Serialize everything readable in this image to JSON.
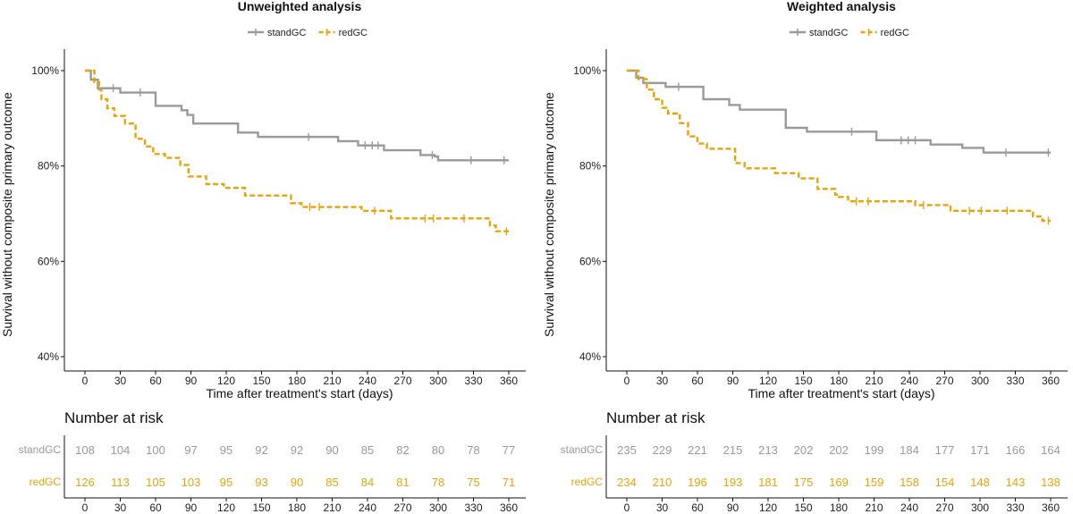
{
  "colors": {
    "standGC": "#9a9a9a",
    "redGC": "#E5A40C",
    "axis": "#111111"
  },
  "chart_data": [
    {
      "type": "line",
      "title": "Unweighted analysis",
      "xlabel": "Time after treatment's start (days)",
      "ylabel": "Survival without composite primary outcome",
      "xlim": [
        0,
        360
      ],
      "ylim": [
        0.4,
        1.0
      ],
      "x_ticks": [
        0,
        30,
        60,
        90,
        120,
        150,
        180,
        210,
        240,
        270,
        300,
        330,
        360
      ],
      "y_ticks": [
        0.4,
        0.6,
        0.8,
        1.0
      ],
      "y_tick_labels": [
        "40%",
        "60%",
        "80%",
        "100%"
      ],
      "legend": [
        "standGC",
        "redGC"
      ],
      "series": [
        {
          "name": "standGC",
          "style": "solid",
          "steps": [
            [
              0,
              1.0
            ],
            [
              5,
              0.981
            ],
            [
              11,
              0.963
            ],
            [
              30,
              0.954
            ],
            [
              60,
              0.926
            ],
            [
              82,
              0.917
            ],
            [
              87,
              0.907
            ],
            [
              92,
              0.889
            ],
            [
              130,
              0.87
            ],
            [
              147,
              0.861
            ],
            [
              215,
              0.852
            ],
            [
              232,
              0.843
            ],
            [
              254,
              0.833
            ],
            [
              285,
              0.823
            ],
            [
              297,
              0.82
            ],
            [
              300,
              0.812
            ],
            [
              360,
              0.812
            ]
          ],
          "censored": [
            [
              24,
              0.963
            ],
            [
              47,
              0.954
            ],
            [
              190,
              0.861
            ],
            [
              238,
              0.843
            ],
            [
              244,
              0.843
            ],
            [
              249,
              0.843
            ],
            [
              295,
              0.823
            ],
            [
              328,
              0.812
            ],
            [
              356,
              0.812
            ]
          ]
        },
        {
          "name": "redGC",
          "style": "dashed",
          "steps": [
            [
              0,
              1.0
            ],
            [
              8,
              0.976
            ],
            [
              12,
              0.96
            ],
            [
              14,
              0.94
            ],
            [
              19,
              0.921
            ],
            [
              25,
              0.905
            ],
            [
              34,
              0.889
            ],
            [
              43,
              0.857
            ],
            [
              51,
              0.841
            ],
            [
              58,
              0.825
            ],
            [
              68,
              0.817
            ],
            [
              81,
              0.802
            ],
            [
              88,
              0.778
            ],
            [
              103,
              0.762
            ],
            [
              118,
              0.754
            ],
            [
              136,
              0.738
            ],
            [
              175,
              0.722
            ],
            [
              184,
              0.714
            ],
            [
              235,
              0.706
            ],
            [
              260,
              0.69
            ],
            [
              344,
              0.675
            ],
            [
              349,
              0.663
            ],
            [
              360,
              0.663
            ]
          ],
          "censored": [
            [
              191,
              0.714
            ],
            [
              199,
              0.714
            ],
            [
              246,
              0.706
            ],
            [
              289,
              0.69
            ],
            [
              296,
              0.69
            ],
            [
              322,
              0.69
            ],
            [
              358,
              0.663
            ]
          ]
        }
      ],
      "risk_table": {
        "title": "Number at risk",
        "times": [
          0,
          30,
          60,
          90,
          120,
          150,
          180,
          210,
          240,
          270,
          300,
          330,
          360
        ],
        "rows": [
          {
            "name": "standGC",
            "values": [
              "108",
              "104",
              "100",
              "97",
              "95",
              "92",
              "92",
              "90",
              "85",
              "82",
              "80",
              "78",
              "77"
            ]
          },
          {
            "name": "redGC",
            "values": [
              "126",
              "113",
              "105",
              "103",
              "95",
              "93",
              "90",
              "85",
              "84",
              "81",
              "78",
              "75",
              "71"
            ]
          }
        ]
      }
    },
    {
      "type": "line",
      "title": "Weighted analysis",
      "xlabel": "Time after treatment's start (days)",
      "ylabel": "Survival without composite primary outcome",
      "xlim": [
        0,
        360
      ],
      "ylim": [
        0.4,
        1.0
      ],
      "x_ticks": [
        0,
        30,
        60,
        90,
        120,
        150,
        180,
        210,
        240,
        270,
        300,
        330,
        360
      ],
      "y_ticks": [
        0.4,
        0.6,
        0.8,
        1.0
      ],
      "y_tick_labels": [
        "40%",
        "60%",
        "80%",
        "100%"
      ],
      "legend": [
        "standGC",
        "redGC"
      ],
      "series": [
        {
          "name": "standGC",
          "style": "solid",
          "steps": [
            [
              0,
              1.0
            ],
            [
              8,
              0.985
            ],
            [
              14,
              0.974
            ],
            [
              33,
              0.966
            ],
            [
              65,
              0.94
            ],
            [
              87,
              0.928
            ],
            [
              96,
              0.918
            ],
            [
              135,
              0.88
            ],
            [
              153,
              0.872
            ],
            [
              212,
              0.854
            ],
            [
              258,
              0.845
            ],
            [
              285,
              0.838
            ],
            [
              303,
              0.828
            ],
            [
              360,
              0.828
            ]
          ],
          "censored": [
            [
              44,
              0.966
            ],
            [
              191,
              0.872
            ],
            [
              233,
              0.854
            ],
            [
              239,
              0.854
            ],
            [
              245,
              0.854
            ],
            [
              322,
              0.828
            ],
            [
              358,
              0.828
            ]
          ]
        },
        {
          "name": "redGC",
          "style": "dashed",
          "steps": [
            [
              0,
              1.0
            ],
            [
              10,
              0.982
            ],
            [
              17,
              0.96
            ],
            [
              23,
              0.94
            ],
            [
              30,
              0.922
            ],
            [
              35,
              0.91
            ],
            [
              45,
              0.89
            ],
            [
              52,
              0.862
            ],
            [
              60,
              0.847
            ],
            [
              68,
              0.836
            ],
            [
              92,
              0.806
            ],
            [
              100,
              0.795
            ],
            [
              126,
              0.785
            ],
            [
              146,
              0.774
            ],
            [
              162,
              0.752
            ],
            [
              177,
              0.74
            ],
            [
              180,
              0.735
            ],
            [
              188,
              0.726
            ],
            [
              245,
              0.718
            ],
            [
              275,
              0.706
            ],
            [
              345,
              0.694
            ],
            [
              353,
              0.685
            ],
            [
              360,
              0.685
            ]
          ],
          "censored": [
            [
              195,
              0.726
            ],
            [
              205,
              0.726
            ],
            [
              252,
              0.718
            ],
            [
              291,
              0.706
            ],
            [
              301,
              0.706
            ],
            [
              323,
              0.706
            ],
            [
              358,
              0.685
            ]
          ]
        }
      ],
      "risk_table": {
        "title": "Number at risk",
        "times": [
          0,
          30,
          60,
          90,
          120,
          150,
          180,
          210,
          240,
          270,
          300,
          330,
          360
        ],
        "rows": [
          {
            "name": "standGC",
            "values": [
              "235",
              "229",
              "221",
              "215",
              "213",
              "202",
              "202",
              "199",
              "184",
              "177",
              "171",
              "166",
              "164"
            ]
          },
          {
            "name": "redGC",
            "values": [
              "234",
              "210",
              "196",
              "193",
              "181",
              "175",
              "169",
              "159",
              "158",
              "154",
              "148",
              "143",
              "138"
            ]
          }
        ]
      }
    }
  ]
}
